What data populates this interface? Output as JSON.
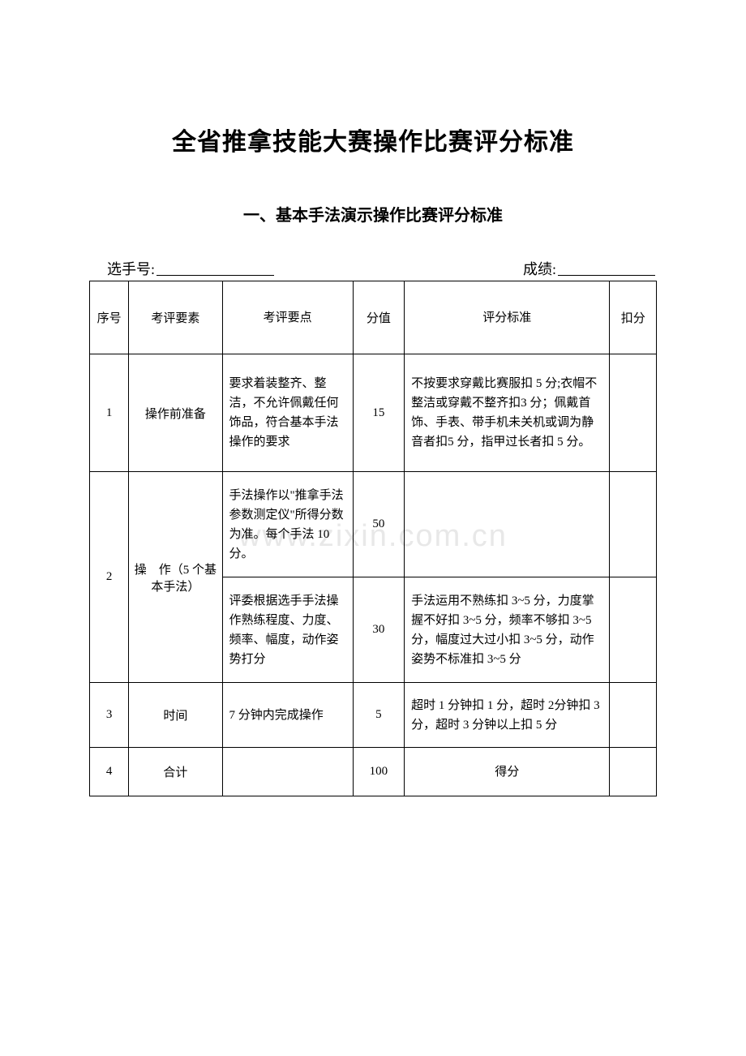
{
  "title": "全省推拿技能大赛操作比赛评分标准",
  "subtitle": "一、基本手法演示操作比赛评分标准",
  "watermark": "www.zixin.com.cn",
  "form": {
    "contestant_label": "选手号:",
    "score_label": "成绩:"
  },
  "headers": {
    "seq": "序号",
    "element": "考评要素",
    "points": "考评要点",
    "score": "分值",
    "standard": "评分标准",
    "deduct": "扣分"
  },
  "rows": [
    {
      "seq": "1",
      "element": "操作前准备",
      "points": "要求着装整齐、整洁，不允许佩戴任何饰品，符合基本手法操作的要求",
      "score": "15",
      "standard": "不按要求穿戴比赛服扣 5 分;衣帽不整洁或穿戴不整齐扣3 分；佩戴首饰、手表、带手机未关机或调为静音者扣5 分，指甲过长者扣 5 分。"
    },
    {
      "seq": "2",
      "element": "操　作（5 个基本手法）",
      "points_a": "手法操作以\"推拿手法参数测定仪\"所得分数为准。每个手法 10 分。",
      "score_a": "50",
      "standard_a": "",
      "points_b": "评委根据选手手法操作熟练程度、力度、频率、幅度，动作姿势打分",
      "score_b": "30",
      "standard_b": "手法运用不熟练扣 3~5 分，力度掌握不好扣 3~5 分，频率不够扣 3~5 分，幅度过大过小扣 3~5 分，动作姿势不标准扣 3~5 分"
    },
    {
      "seq": "3",
      "element": "时间",
      "points": "7 分钟内完成操作",
      "score": "5",
      "standard": "超时 1 分钟扣 1 分，超时 2分钟扣 3 分，超时 3 分钟以上扣 5 分"
    },
    {
      "seq": "4",
      "element": "合计",
      "points": "",
      "score": "100",
      "standard": "得分"
    }
  ],
  "styling": {
    "background_color": "#ffffff",
    "text_color": "#000000",
    "border_color": "#000000",
    "watermark_color": "#e8e8e8",
    "title_fontsize": 30,
    "subtitle_fontsize": 20,
    "body_fontsize": 15,
    "form_fontsize": 18,
    "font_family": "SimSun"
  },
  "columns_width": {
    "seq": 42,
    "element": 100,
    "points": 140,
    "score": 55,
    "standard": 220,
    "deduct": 50
  }
}
